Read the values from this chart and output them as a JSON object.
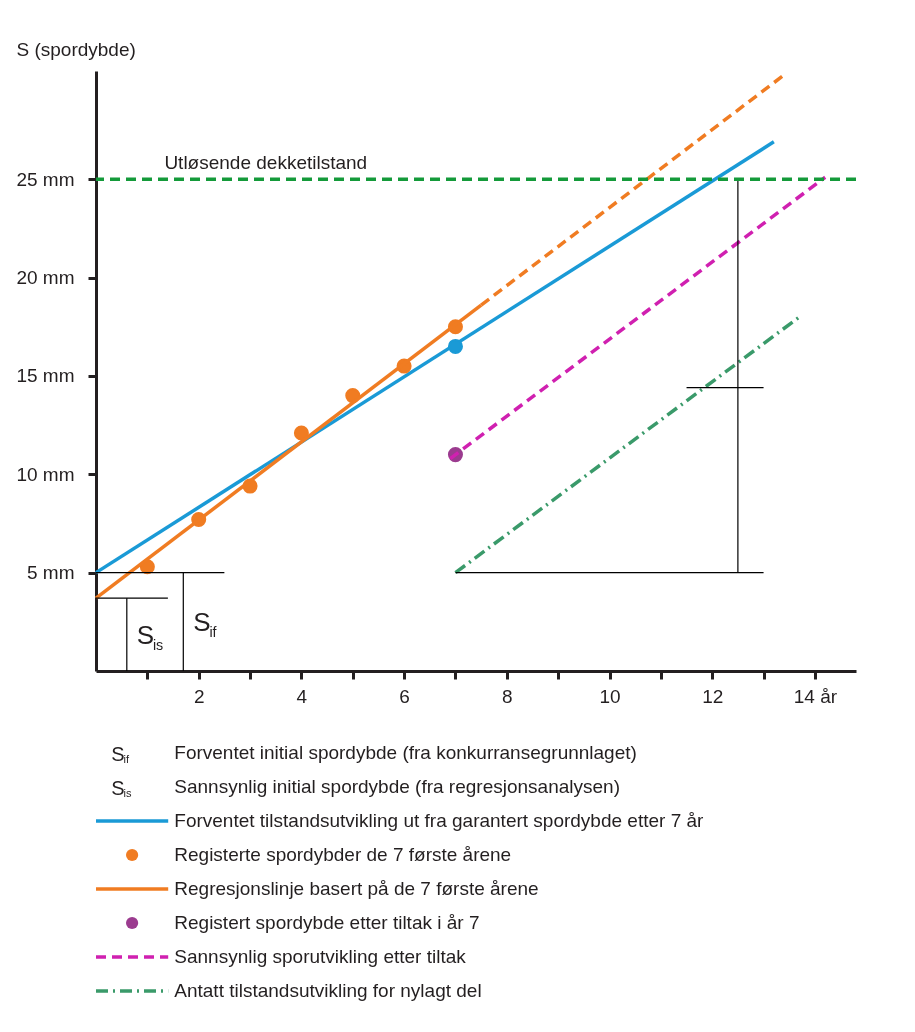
{
  "chart_data": {
    "type": "line",
    "ylabel": "S (spordybde)",
    "xlim": [
      0,
      14.8
    ],
    "ylim": [
      0,
      30.5
    ],
    "xticks": [
      {
        "value": 1,
        "label": null
      },
      2,
      {
        "value": 3,
        "label": null
      },
      4,
      {
        "value": 5,
        "label": null
      },
      6,
      {
        "value": 7,
        "label": null
      },
      8,
      {
        "value": 9,
        "label": null
      },
      10,
      {
        "value": 11,
        "label": null
      },
      12,
      {
        "value": 13,
        "label": null
      },
      {
        "value": 14,
        "label": "14 år"
      }
    ],
    "yticks": [
      {
        "value": 5,
        "label": "5 mm"
      },
      {
        "value": 10,
        "label": "10 mm"
      },
      {
        "value": 15,
        "label": "15 mm"
      },
      {
        "value": 20,
        "label": "20 mm"
      },
      {
        "value": 25,
        "label": "25 mm"
      }
    ],
    "grid": false,
    "legend": "bottom",
    "series": [
      {
        "name": "Forventet tilstandsutvikling ut fra garantert spordybde etter 7 år",
        "color": "#1a9ad6",
        "x": [
          0,
          13.2
        ],
        "values": [
          5,
          26.9
        ]
      },
      {
        "type": "scatter",
        "color": "#1a9ad6",
        "x": [
          7
        ],
        "values": [
          16.5
        ]
      },
      {
        "name": "Registerte spordybder de 7 første årene",
        "type": "scatter",
        "color": "#f07c22",
        "x": [
          1,
          2,
          3,
          4,
          5,
          6,
          7
        ],
        "values": [
          5.3,
          7.7,
          9.4,
          12.1,
          14.0,
          15.5,
          17.5
        ]
      },
      {
        "name": "Regresjonslinje basert på de 7 første årene",
        "color": "#f07c22",
        "x": [
          0,
          7.5
        ],
        "values": [
          3.7,
          18.6
        ]
      },
      {
        "color": "#f07c22",
        "line_style": "dashed",
        "x": [
          7.5,
          13.4
        ],
        "values": [
          18.6,
          30.3
        ]
      },
      {
        "name": "Registert spordybde etter tiltak i år 7",
        "type": "scatter",
        "color": "#9b3b8f",
        "x": [
          7
        ],
        "values": [
          11.0
        ]
      },
      {
        "name": "Sannsynlig sporutvikling etter tiltak",
        "color": "#d020b0",
        "line_style": "dashed",
        "x": [
          6.9,
          14.2
        ],
        "values": [
          10.8,
          25.1
        ]
      },
      {
        "name": "Antatt tilstandsutvikling for nylagt del",
        "color": "#3a9a6a",
        "line_style": "dashdot",
        "x": [
          7,
          13.7
        ],
        "values": [
          5,
          18.0
        ]
      },
      {
        "type": "line",
        "color": "#000000",
        "x": [
          0,
          1.4
        ],
        "values": [
          3.7,
          3.7
        ]
      },
      {
        "type": "line",
        "color": "#000000",
        "x": [
          0,
          2.5
        ],
        "values": [
          5,
          5
        ]
      },
      {
        "type": "line",
        "color": "#000000",
        "x": [
          7,
          13
        ],
        "values": [
          5,
          5
        ]
      },
      {
        "type": "line",
        "color": "#000000",
        "x": [
          11.5,
          13
        ],
        "values": [
          14.4,
          14.4
        ]
      },
      {
        "type": "line",
        "color": "#000000",
        "x": [
          0.6,
          0.6
        ],
        "values": [
          0,
          3.7
        ]
      },
      {
        "type": "line",
        "color": "#000000",
        "x": [
          1.7,
          1.7
        ],
        "values": [
          0,
          5
        ]
      },
      {
        "type": "line",
        "color": "#000000",
        "x": [
          12.5,
          12.5
        ],
        "values": [
          5,
          25
        ]
      }
    ],
    "ref_lines": [
      {
        "axis": "y",
        "value": 25,
        "label": "Utløsende dekketilstand",
        "color": "#149a3a",
        "line_style": "dashed"
      }
    ],
    "annotations": [
      {
        "text": "S$_{is}$",
        "x": 0.6,
        "y": 1.85
      },
      {
        "text": "S$_{if}$",
        "x": 1.7,
        "y": 2.5
      },
      "S$_{if}$ Forventet initial spordybde (fra konkurransegrunnlaget)",
      "S$_{is}$ Sannsynlig initial spordybde (fra regresjonsanalysen)"
    ]
  }
}
